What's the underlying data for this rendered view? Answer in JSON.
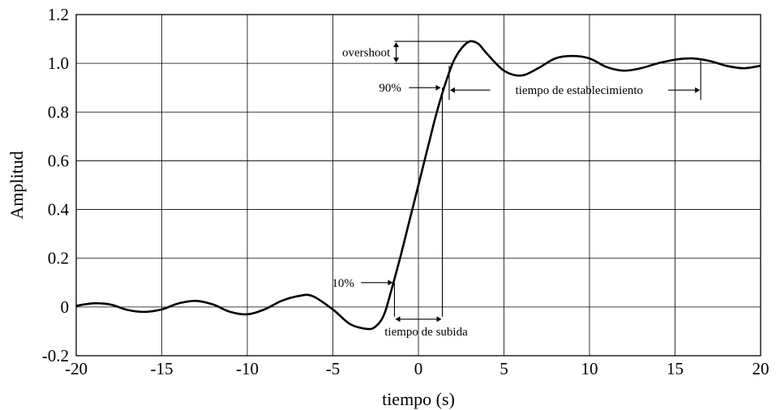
{
  "chart_data": {
    "type": "line",
    "xlabel": "tiempo (s)",
    "ylabel": "Amplitud",
    "xlim": [
      -20,
      20
    ],
    "ylim": [
      -0.2,
      1.2
    ],
    "xticks": [
      -20,
      -15,
      -10,
      -5,
      0,
      5,
      10,
      15,
      20
    ],
    "xtick_labels": [
      "-20",
      "-15",
      "-10",
      "-5",
      "0",
      "5",
      "10",
      "15",
      "20"
    ],
    "yticks": [
      -0.2,
      0,
      0.2,
      0.4,
      0.6,
      0.8,
      1.0,
      1.2
    ],
    "ytick_labels": [
      "-0.2",
      "0",
      "0.2",
      "0.4",
      "0.6",
      "0.8",
      "1.0",
      "1.2"
    ],
    "grid": true,
    "series": [
      {
        "color": "#000000",
        "x": [
          -20,
          -19,
          -18,
          -17,
          -16,
          -15,
          -14,
          -13,
          -12,
          -11,
          -10,
          -9,
          -8,
          -7,
          -6.2,
          -5,
          -4,
          -3,
          -2.5,
          -2,
          -1.5,
          -1,
          -0.5,
          0,
          0.5,
          1,
          1.5,
          2,
          2.5,
          3,
          3.5,
          4,
          5,
          6,
          7,
          8,
          9,
          10,
          11,
          12,
          13,
          14,
          15,
          16,
          17,
          18,
          19,
          20
        ],
        "y": [
          0.005,
          0.015,
          0.01,
          -0.012,
          -0.02,
          -0.01,
          0.015,
          0.025,
          0.01,
          -0.02,
          -0.03,
          -0.01,
          0.025,
          0.045,
          0.045,
          -0.01,
          -0.07,
          -0.09,
          -0.08,
          -0.03,
          0.09,
          0.22,
          0.36,
          0.5,
          0.64,
          0.78,
          0.9,
          1.0,
          1.06,
          1.09,
          1.08,
          1.04,
          0.97,
          0.95,
          0.98,
          1.02,
          1.03,
          1.02,
          0.985,
          0.97,
          0.98,
          1.0,
          1.015,
          1.02,
          1.01,
          0.99,
          0.98,
          0.99
        ]
      }
    ],
    "annotations": {
      "overshoot": "overshoot",
      "p90": "90%",
      "p10": "10%",
      "settling": "tiempo de establecimiento",
      "rise": "tiempo de subida"
    }
  }
}
